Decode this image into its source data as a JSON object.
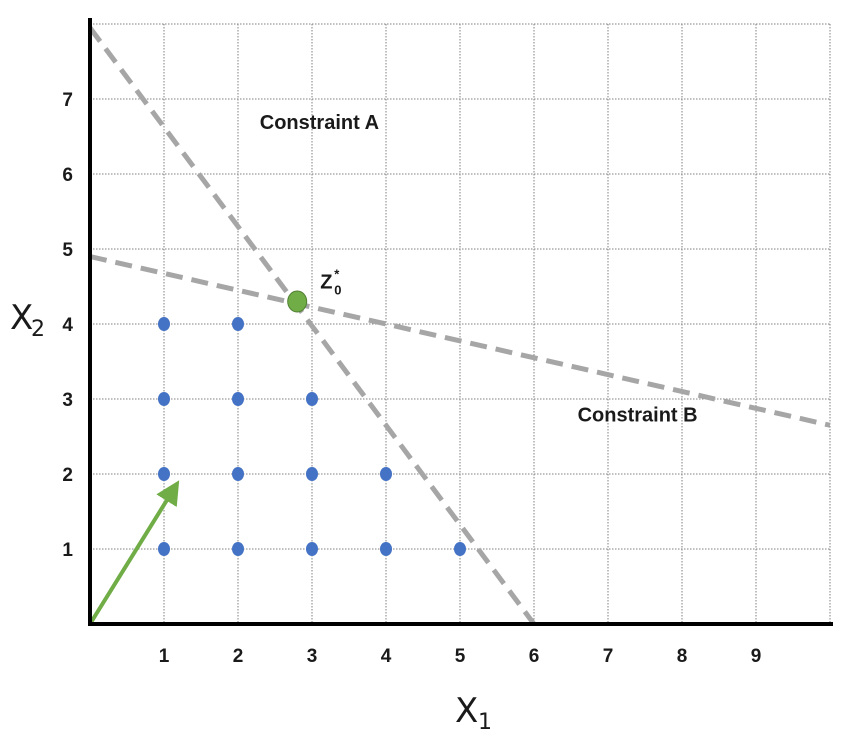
{
  "chart_data": {
    "type": "scatter",
    "title": "",
    "xlim": [
      0,
      10
    ],
    "ylim": [
      0,
      8
    ],
    "x_ticks": [
      1,
      2,
      3,
      4,
      5,
      6,
      7,
      8,
      9
    ],
    "y_ticks": [
      1,
      2,
      3,
      4,
      5,
      6,
      7
    ],
    "grid": true,
    "xlabel": {
      "main": "X",
      "sub": "1"
    },
    "ylabel": {
      "main": "X",
      "sub": "2"
    },
    "constraints": [
      {
        "name": "Constraint A",
        "from": [
          0,
          7.95
        ],
        "to": [
          6,
          0
        ],
        "label_at": [
          3.1,
          6.6
        ]
      },
      {
        "name": "Constraint B",
        "from": [
          0,
          4.9
        ],
        "to": [
          10,
          2.65
        ],
        "label_at": [
          7.4,
          2.7
        ]
      }
    ],
    "feasible_points": [
      [
        1,
        1
      ],
      [
        2,
        1
      ],
      [
        3,
        1
      ],
      [
        4,
        1
      ],
      [
        5,
        1
      ],
      [
        1,
        2
      ],
      [
        2,
        2
      ],
      [
        3,
        2
      ],
      [
        4,
        2
      ],
      [
        1,
        3
      ],
      [
        2,
        3
      ],
      [
        3,
        3
      ],
      [
        1,
        4
      ],
      [
        2,
        4
      ]
    ],
    "optimum": {
      "x": 2.8,
      "y": 4.3,
      "label_main": "Z",
      "label_sup": "*",
      "label_sub": "0"
    },
    "direction_arrow": {
      "from": [
        0,
        0
      ],
      "to": [
        1.12,
        1.78
      ]
    },
    "colors": {
      "points": "#4472c4",
      "optimum": "#70ad47",
      "arrow": "#70ad47",
      "constraint": "#a6a6a6",
      "axis": "#000000",
      "grid": "#808080"
    }
  }
}
